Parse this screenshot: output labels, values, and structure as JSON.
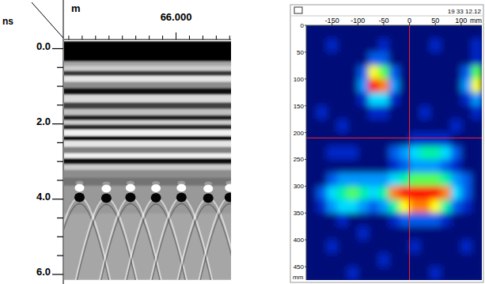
{
  "chart_data": [
    {
      "type": "heatmap",
      "x_label": "m",
      "y_label": "ns",
      "xlim": [
        65.165,
        66.41
      ],
      "ylim": [
        -0.2,
        6.15
      ],
      "xticks": [
        {
          "value": 65.2,
          "label": null
        },
        {
          "value": 65.3,
          "label": null
        },
        {
          "value": 65.4,
          "label": null
        },
        {
          "value": 65.5,
          "label": null
        },
        {
          "value": 65.6,
          "label": null
        },
        {
          "value": 65.7,
          "label": null
        },
        {
          "value": 65.8,
          "label": null
        },
        {
          "value": 65.9,
          "label": null
        },
        {
          "value": 66.0,
          "label": "66.000"
        },
        {
          "value": 66.1,
          "label": null
        },
        {
          "value": 66.2,
          "label": null
        },
        {
          "value": 66.3,
          "label": null
        },
        {
          "value": 66.4,
          "label": null
        }
      ],
      "yticks": [
        {
          "value": 0,
          "label": "0.0"
        },
        {
          "value": 0.5,
          "label": null
        },
        {
          "value": 1.0,
          "label": null
        },
        {
          "value": 1.5,
          "label": null
        },
        {
          "value": 2,
          "label": "2.0"
        },
        {
          "value": 2.5,
          "label": null
        },
        {
          "value": 3.0,
          "label": null
        },
        {
          "value": 3.5,
          "label": null
        },
        {
          "value": 4,
          "label": "4.0"
        },
        {
          "value": 4.5,
          "label": null
        },
        {
          "value": 5.0,
          "label": null
        },
        {
          "value": 5.5,
          "label": null
        },
        {
          "value": 6,
          "label": "6.0"
        }
      ],
      "t_edges": [
        -0.2,
        0.34,
        0.46,
        0.59,
        0.72,
        0.88,
        1.05,
        1.22,
        1.43,
        1.6,
        1.77,
        1.9,
        2.02,
        2.15,
        2.32,
        2.44,
        2.61,
        2.78,
        2.91,
        3.07,
        3.22,
        3.43,
        3.64,
        3.96,
        4.38,
        6.15
      ],
      "amplitude": [
        -1,
        0.3,
        0.6,
        -0.6,
        0.8,
        0.1,
        -0.9,
        0.7,
        -0.5,
        0.5,
        -0.8,
        0.6,
        -0.7,
        0.9,
        -1,
        0.8,
        0,
        0.9,
        -0.9,
        0.6,
        0.1,
        -0.1,
        0.2,
        0.2,
        0.3
      ],
      "reflectors": {
        "x": [
          65.28,
          65.48,
          65.66,
          65.85,
          66.04,
          66.24,
          66.4
        ],
        "t": [
          3.7,
          3.72,
          3.7,
          3.71,
          3.7,
          3.72,
          3.7
        ]
      }
    },
    {
      "type": "heatmap",
      "title": "19 33 12.12",
      "x_label": "mm",
      "y_label": "mm",
      "xlim": [
        -200,
        140
      ],
      "ylim": [
        0,
        475
      ],
      "xticks": [
        -150,
        -100,
        -50,
        0,
        50,
        100
      ],
      "yticks": [
        0,
        50,
        100,
        150,
        200,
        250,
        300,
        350,
        400,
        450
      ],
      "x": [
        -190,
        -170,
        -150,
        -130,
        -110,
        -90,
        -70,
        -50,
        -30,
        -10,
        10,
        30,
        50,
        70,
        90,
        110,
        130
      ],
      "y": [
        12.5,
        37.5,
        62.5,
        87.5,
        112.5,
        137.5,
        162.5,
        187.5,
        212.5,
        237.5,
        262.5,
        287.5,
        312.5,
        337.5,
        362.5,
        387.5,
        412.5,
        437.5,
        462.5
      ],
      "cells": [
        [
          1,
          1,
          1,
          1,
          1,
          1,
          1,
          1,
          1,
          1,
          1,
          1,
          1,
          1,
          1,
          1,
          1
        ],
        [
          1,
          1,
          2,
          1,
          1,
          1,
          1,
          2,
          1,
          1,
          1,
          1,
          2,
          1,
          1,
          1,
          2
        ],
        [
          1,
          1,
          1,
          1,
          1,
          1,
          3,
          3,
          1,
          1,
          1,
          1,
          1,
          1,
          1,
          1,
          2
        ],
        [
          1,
          1,
          1,
          1,
          1,
          3,
          8,
          7,
          3,
          1,
          1,
          1,
          1,
          1,
          1,
          3,
          7
        ],
        [
          1,
          1,
          1,
          1,
          1,
          4,
          10,
          9,
          4,
          1,
          1,
          1,
          1,
          1,
          1,
          4,
          8
        ],
        [
          1,
          1,
          1,
          1,
          1,
          2,
          5,
          5,
          2,
          1,
          1,
          1,
          1,
          1,
          1,
          2,
          4
        ],
        [
          1,
          2,
          1,
          1,
          1,
          1,
          2,
          2,
          1,
          1,
          1,
          2,
          1,
          1,
          1,
          1,
          2
        ],
        [
          1,
          1,
          1,
          2,
          1,
          1,
          1,
          1,
          1,
          1,
          1,
          1,
          1,
          1,
          2,
          1,
          1
        ],
        [
          1,
          1,
          1,
          1,
          1,
          1,
          1,
          1,
          1,
          1,
          2,
          2,
          2,
          2,
          1,
          1,
          1
        ],
        [
          1,
          1,
          2,
          2,
          2,
          1,
          1,
          1,
          3,
          4,
          5,
          6,
          6,
          5,
          3,
          1,
          1
        ],
        [
          1,
          1,
          1,
          1,
          1,
          1,
          1,
          1,
          2,
          3,
          4,
          4,
          4,
          3,
          2,
          1,
          1
        ],
        [
          1,
          1,
          3,
          4,
          4,
          4,
          4,
          4,
          5,
          6,
          7,
          7,
          7,
          6,
          4,
          3,
          1
        ],
        [
          1,
          3,
          5,
          6,
          7,
          6,
          5,
          6,
          9,
          10,
          10,
          10,
          10,
          9,
          5,
          3,
          1
        ],
        [
          1,
          2,
          4,
          5,
          5,
          4,
          3,
          4,
          6,
          8,
          9,
          9,
          8,
          6,
          3,
          2,
          1
        ],
        [
          1,
          1,
          1,
          2,
          1,
          1,
          1,
          1,
          2,
          3,
          3,
          3,
          3,
          2,
          1,
          1,
          1
        ],
        [
          1,
          1,
          1,
          1,
          1,
          2,
          1,
          1,
          1,
          1,
          1,
          1,
          1,
          1,
          1,
          1,
          1
        ],
        [
          1,
          1,
          2,
          1,
          1,
          1,
          1,
          1,
          1,
          1,
          2,
          1,
          1,
          1,
          1,
          2,
          1
        ],
        [
          1,
          1,
          1,
          1,
          1,
          1,
          1,
          2,
          1,
          1,
          1,
          1,
          1,
          1,
          1,
          1,
          1
        ],
        [
          1,
          1,
          1,
          1,
          2,
          1,
          1,
          1,
          1,
          1,
          1,
          1,
          2,
          1,
          1,
          1,
          1
        ]
      ],
      "color_range": [
        0,
        10
      ],
      "cursor": {
        "x": 0,
        "y": 210
      }
    }
  ]
}
